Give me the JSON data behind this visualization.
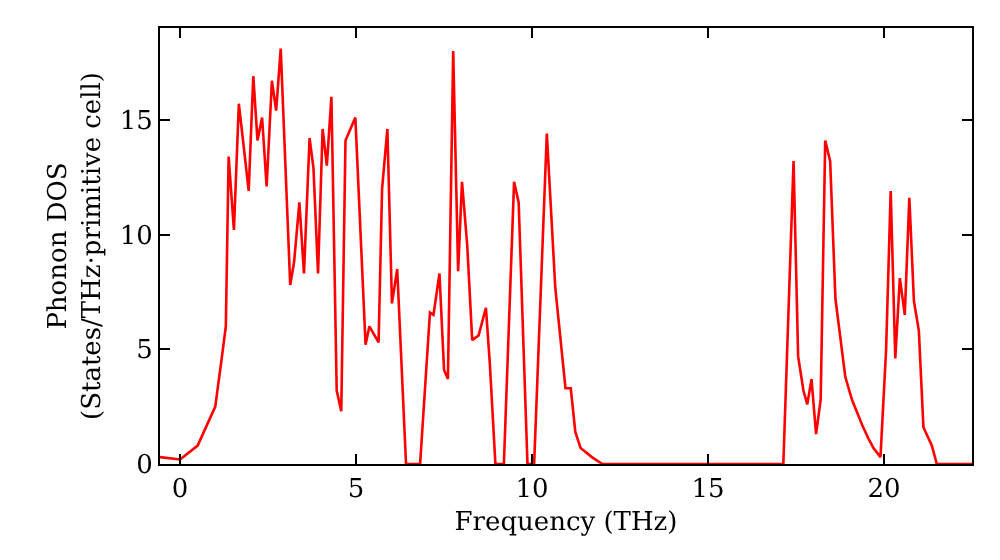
{
  "chart_data": {
    "type": "line",
    "xlabel": "Frequency (THz)",
    "ylabel": "Phonon DOS\n(States/THz·primitive cell)",
    "xlim": [
      -0.57,
      22.5
    ],
    "ylim": [
      0,
      19
    ],
    "xticks": [
      0,
      5,
      10,
      15,
      20
    ],
    "yticks": [
      0,
      5,
      10,
      15
    ],
    "grid": false,
    "marker": "none",
    "line_style": "solid",
    "series": [
      {
        "color": "#ff0000",
        "x": [
          -0.57,
          0,
          0.5,
          1.0,
          1.2,
          1.3,
          1.38,
          1.53,
          1.67,
          1.95,
          2.08,
          2.2,
          2.33,
          2.46,
          2.61,
          2.73,
          2.86,
          3.13,
          3.24,
          3.39,
          3.52,
          3.68,
          3.79,
          3.92,
          4.05,
          4.17,
          4.3,
          4.45,
          4.58,
          4.7,
          4.98,
          5.27,
          5.38,
          5.64,
          5.74,
          5.89,
          6.02,
          6.17,
          6.42,
          6.82,
          7.1,
          7.2,
          7.37,
          7.5,
          7.61,
          7.76,
          7.9,
          8.01,
          8.16,
          8.3,
          8.48,
          8.69,
          8.8,
          8.96,
          9.2,
          9.49,
          9.62,
          9.87,
          10.06,
          10.42,
          10.66,
          10.95,
          11.1,
          11.23,
          11.38,
          11.7,
          12.0,
          17.14,
          17.43,
          17.56,
          17.71,
          17.82,
          17.94,
          18.07,
          18.2,
          18.33,
          18.47,
          18.62,
          18.9,
          19.09,
          19.38,
          19.56,
          19.7,
          19.9,
          20.06,
          20.19,
          20.32,
          20.45,
          20.59,
          20.72,
          20.85,
          20.99,
          21.12,
          21.36,
          21.5,
          22.5
        ],
        "values": [
          0.3,
          0.2,
          0.8,
          2.5,
          4.8,
          6,
          13.4,
          10.2,
          15.7,
          11.9,
          16.9,
          14.1,
          15.1,
          12.1,
          16.7,
          15.4,
          18.1,
          7.8,
          8.8,
          11.4,
          8.3,
          14.2,
          12.9,
          8.3,
          14.6,
          13,
          16,
          3.2,
          2.3,
          14.1,
          15.1,
          5.2,
          6,
          5.3,
          12,
          14.6,
          7,
          8.5,
          0,
          0,
          6.6,
          6.5,
          8.3,
          4.1,
          3.7,
          18,
          8.4,
          12.3,
          9.5,
          5.4,
          5.6,
          6.8,
          4.4,
          0,
          0,
          12.3,
          11.4,
          0,
          0,
          14.4,
          7.7,
          3.3,
          3.3,
          1.4,
          0.7,
          0.3,
          0,
          0,
          13.2,
          4.7,
          3.2,
          2.6,
          3.7,
          1.3,
          2.8,
          14.1,
          13.2,
          7.2,
          3.8,
          2.8,
          1.7,
          1.1,
          0.7,
          0.3,
          5,
          11.9,
          4.6,
          8.1,
          6.5,
          11.6,
          7.1,
          5.8,
          1.6,
          0.8,
          0,
          0
        ]
      }
    ]
  }
}
